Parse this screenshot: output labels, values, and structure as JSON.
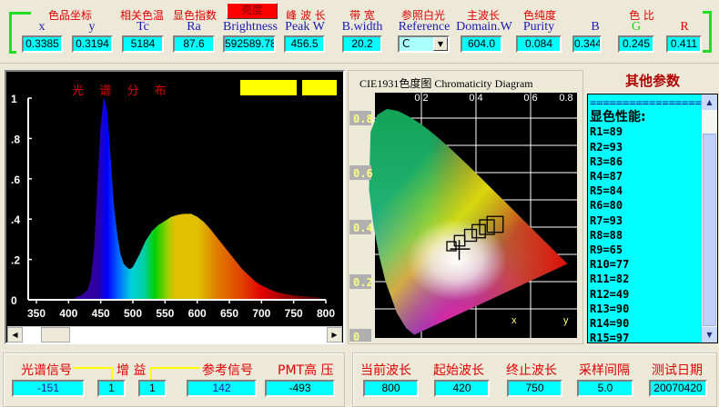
{
  "top": {
    "groups": [
      {
        "cn": "色品坐标"
      },
      {
        "cn": "相关色温"
      },
      {
        "cn": "显色指数"
      },
      {
        "cn": "亮度"
      },
      {
        "cn": "峰 波 长"
      },
      {
        "cn": "带 宽"
      },
      {
        "cn": "参照白光"
      },
      {
        "cn": "主波长"
      },
      {
        "cn": "色纯度"
      },
      {
        "cn": "色  比"
      }
    ],
    "fields": [
      {
        "label": "x",
        "value": "0.3385"
      },
      {
        "label": "y",
        "value": "0.3194"
      },
      {
        "label": "Tc",
        "value": "5184"
      },
      {
        "label": "Ra",
        "value": "87.6"
      },
      {
        "label": "Brightness",
        "value": "592589.784"
      },
      {
        "label": "Peak W",
        "value": "456.5"
      },
      {
        "label": "B.width",
        "value": "20.2"
      },
      {
        "label": "Reference",
        "value": "C"
      },
      {
        "label": "Domain.W",
        "value": "604.0"
      },
      {
        "label": "Purity",
        "value": "0.084"
      },
      {
        "label": "B",
        "value": "0.344"
      },
      {
        "label": "G",
        "value": "0.245"
      },
      {
        "label": "R",
        "value": "0.411"
      }
    ],
    "brightness_button_color": "#ff0000"
  },
  "spectrum": {
    "title": "光  谱  分  布",
    "chart_data": {
      "type": "area",
      "xlabel": "",
      "ylabel": "",
      "xlim": [
        350,
        800
      ],
      "ylim": [
        0,
        1
      ],
      "xticks": [
        "350",
        "400",
        "450",
        "500",
        "550",
        "600",
        "650",
        "700",
        "750",
        "800"
      ],
      "yticks": [
        "0",
        ".2",
        ".4",
        ".6",
        ".8",
        "1"
      ],
      "x": [
        410,
        420,
        430,
        435,
        440,
        445,
        450,
        455,
        460,
        465,
        470,
        475,
        480,
        485,
        490,
        495,
        500,
        510,
        520,
        530,
        540,
        550,
        560,
        570,
        580,
        590,
        600,
        610,
        620,
        630,
        640,
        650,
        660,
        670,
        680,
        690,
        700,
        710,
        720,
        730,
        740,
        750,
        770,
        790
      ],
      "y": [
        0.01,
        0.02,
        0.05,
        0.1,
        0.25,
        0.55,
        0.85,
        1.0,
        0.93,
        0.7,
        0.47,
        0.33,
        0.23,
        0.18,
        0.16,
        0.15,
        0.16,
        0.22,
        0.29,
        0.34,
        0.37,
        0.39,
        0.41,
        0.42,
        0.425,
        0.425,
        0.41,
        0.385,
        0.35,
        0.31,
        0.27,
        0.23,
        0.19,
        0.15,
        0.12,
        0.09,
        0.07,
        0.055,
        0.04,
        0.032,
        0.026,
        0.02,
        0.015,
        0.01
      ]
    }
  },
  "cie": {
    "title": "CIE1931色度图 Chromaticity Diagram",
    "chart_data": {
      "type": "scatter",
      "xlim": [
        0,
        0.8
      ],
      "ylim": [
        0,
        0.8
      ],
      "xticks": [
        "0.2",
        "0.4",
        "0.6",
        "0.8"
      ],
      "yticks": [
        "0.8",
        "0.6",
        "0.4",
        "0.2",
        "0"
      ],
      "xlabel": "x",
      "ylabel": "y",
      "point": {
        "x": 0.3385,
        "y": 0.3194
      }
    }
  },
  "other": {
    "title": "其他参数",
    "lines": [
      "==================",
      "显色性能:",
      "R1=89",
      "R2=93",
      "R3=86",
      "R4=87",
      "R5=84",
      "R6=80",
      "R7=93",
      "R8=88",
      "R9=65",
      "R10=77",
      "R11=82",
      "R12=49",
      "R13=90",
      "R14=90",
      "R15=97"
    ]
  },
  "bottom_left": {
    "labels": [
      "光谱信号",
      "增 益",
      "参考信号",
      "PMT高 压"
    ],
    "values": [
      "-151",
      "1",
      "1",
      "142",
      "-493"
    ]
  },
  "bottom_right": {
    "items": [
      {
        "label": "当前波长",
        "value": "800"
      },
      {
        "label": "起始波长",
        "value": "420"
      },
      {
        "label": "终止波长",
        "value": "750"
      },
      {
        "label": "采样间隔",
        "value": "5.0"
      },
      {
        "label": "测试日期",
        "value": "20070420"
      }
    ]
  }
}
